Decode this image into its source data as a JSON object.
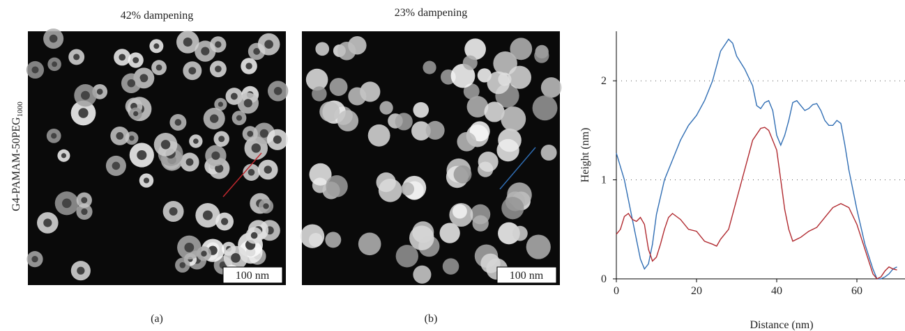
{
  "images": [
    {
      "title": "42% dampening",
      "scale_label": "100 nm",
      "caption": "(a)"
    },
    {
      "title": "23% dampening",
      "scale_label": "100 nm",
      "caption": "(b)"
    }
  ],
  "side_label": {
    "text": "G4-PAMAM-50PEG",
    "subscript": "1000"
  },
  "chart_data": {
    "type": "line",
    "xlabel": "Distance (nm)",
    "ylabel": "Height (nm)",
    "xlim": [
      0,
      72
    ],
    "ylim": [
      0,
      2.5
    ],
    "xticks": [
      0,
      20,
      40,
      60
    ],
    "yticks": [
      0,
      1,
      2
    ],
    "grid": true,
    "series": [
      {
        "color": "#2f6db3",
        "x": [
          0,
          2,
          4,
          6,
          7,
          8,
          9,
          10,
          12,
          14,
          16,
          18,
          20,
          22,
          24,
          26,
          28,
          29,
          30,
          32,
          34,
          35,
          36,
          37,
          38,
          39,
          40,
          41,
          42,
          43,
          44,
          45,
          46,
          47,
          48,
          49,
          50,
          51,
          52,
          53,
          54,
          55,
          56,
          57,
          58,
          60,
          62,
          64,
          65,
          66,
          67,
          68,
          69,
          70
        ],
        "values": [
          1.27,
          1.0,
          0.6,
          0.2,
          0.1,
          0.15,
          0.35,
          0.65,
          1.0,
          1.2,
          1.4,
          1.55,
          1.65,
          1.8,
          2.0,
          2.3,
          2.42,
          2.38,
          2.25,
          2.12,
          1.95,
          1.75,
          1.72,
          1.78,
          1.8,
          1.7,
          1.45,
          1.35,
          1.45,
          1.6,
          1.78,
          1.8,
          1.75,
          1.7,
          1.72,
          1.76,
          1.77,
          1.7,
          1.6,
          1.55,
          1.55,
          1.6,
          1.57,
          1.35,
          1.1,
          0.7,
          0.35,
          0.1,
          0.0,
          0.0,
          0.02,
          0.05,
          0.1,
          0.12
        ]
      },
      {
        "color": "#b0282e",
        "x": [
          0,
          1,
          2,
          3,
          4,
          5,
          6,
          7,
          8,
          9,
          10,
          11,
          12,
          13,
          14,
          16,
          18,
          20,
          22,
          24,
          25,
          26,
          28,
          30,
          32,
          34,
          36,
          37,
          38,
          40,
          41,
          42,
          43,
          44,
          46,
          48,
          50,
          52,
          54,
          56,
          58,
          60,
          62,
          64,
          65,
          66,
          67,
          68,
          69,
          70
        ],
        "values": [
          0.45,
          0.5,
          0.63,
          0.66,
          0.6,
          0.58,
          0.62,
          0.55,
          0.3,
          0.18,
          0.22,
          0.35,
          0.5,
          0.62,
          0.66,
          0.6,
          0.5,
          0.48,
          0.38,
          0.35,
          0.33,
          0.4,
          0.5,
          0.8,
          1.1,
          1.4,
          1.52,
          1.53,
          1.5,
          1.3,
          1.0,
          0.7,
          0.5,
          0.38,
          0.42,
          0.48,
          0.52,
          0.62,
          0.72,
          0.76,
          0.72,
          0.55,
          0.3,
          0.05,
          0.0,
          0.02,
          0.08,
          0.12,
          0.1,
          0.09
        ]
      }
    ]
  }
}
